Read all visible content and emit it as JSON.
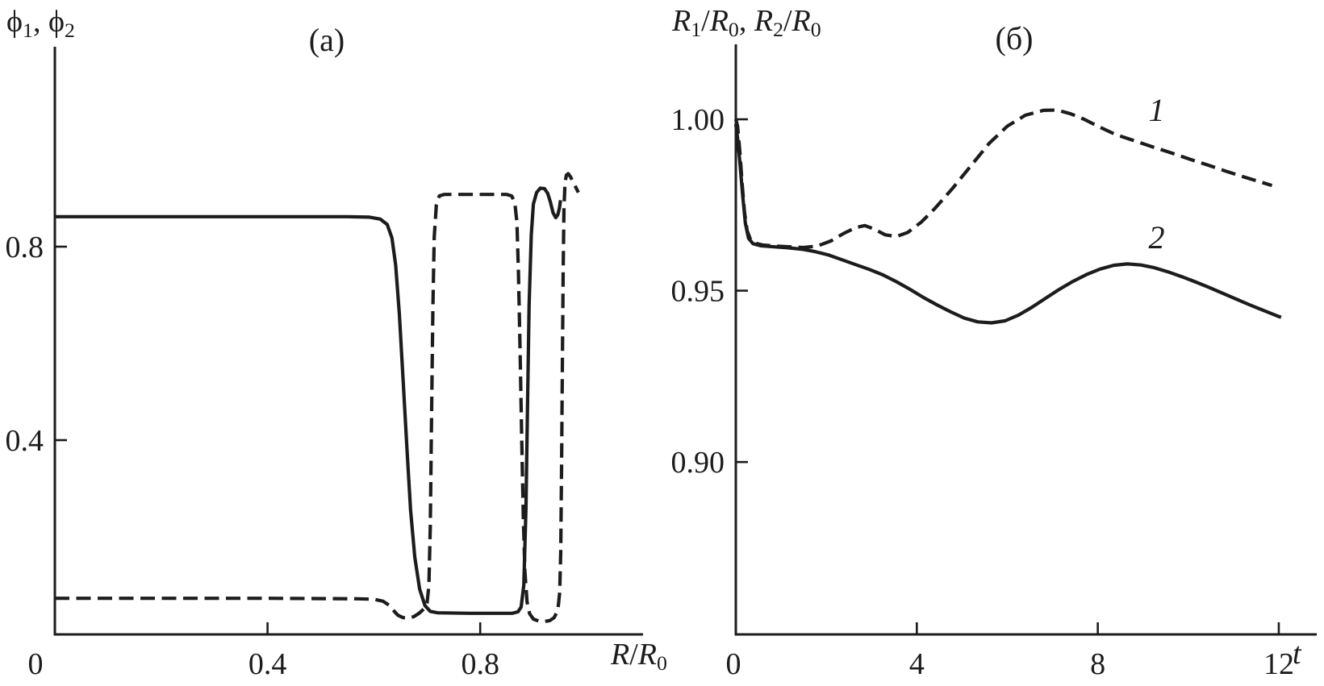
{
  "figure": {
    "background": "#ffffff",
    "ink": "#1c1c1c"
  },
  "chart_data": [
    {
      "type": "line",
      "panel": "a",
      "title": "(a)",
      "ylabel": "ϕ1, ϕ2",
      "ylabel_rich": [
        {
          "t": "ϕ"
        },
        {
          "t": "1",
          "sub": true
        },
        {
          "t": ", "
        },
        {
          "t": "ϕ"
        },
        {
          "t": "2",
          "sub": true
        }
      ],
      "xlabel": "R/R0",
      "xlabel_rich": [
        {
          "t": "R",
          "i": true
        },
        {
          "t": "/"
        },
        {
          "t": "R",
          "i": true
        },
        {
          "t": "0",
          "sub": true
        }
      ],
      "xlim": [
        0,
        1.105
      ],
      "ylim": [
        0,
        1.213
      ],
      "grid": false,
      "x_ticks": [
        {
          "v": 0,
          "label": "0",
          "dx": -24
        },
        {
          "v": 0.4,
          "label": "0.4",
          "dx": 0
        },
        {
          "v": 0.8,
          "label": "0.8",
          "dx": 0
        }
      ],
      "y_ticks": [
        {
          "v": 0.4,
          "label": "0.4"
        },
        {
          "v": 0.8,
          "label": "0.8"
        }
      ],
      "series": [
        {
          "name": "phi2-dashed-curve",
          "style": "dashed",
          "points": [
            [
              0,
              0.073
            ],
            [
              0.2,
              0.073
            ],
            [
              0.4,
              0.073
            ],
            [
              0.57,
              0.072
            ],
            [
              0.6,
              0.071
            ],
            [
              0.617,
              0.067
            ],
            [
              0.628,
              0.059
            ],
            [
              0.636,
              0.049
            ],
            [
              0.645,
              0.038
            ],
            [
              0.655,
              0.033
            ],
            [
              0.665,
              0.032
            ],
            [
              0.675,
              0.035
            ],
            [
              0.685,
              0.042
            ],
            [
              0.694,
              0.051
            ],
            [
              0.7,
              0.063
            ],
            [
              0.7035,
              0.1
            ],
            [
              0.706,
              0.22
            ],
            [
              0.7085,
              0.45
            ],
            [
              0.711,
              0.67
            ],
            [
              0.7135,
              0.82
            ],
            [
              0.7175,
              0.886
            ],
            [
              0.723,
              0.905
            ],
            [
              0.732,
              0.908
            ],
            [
              0.8,
              0.908
            ],
            [
              0.85,
              0.908
            ],
            [
              0.859,
              0.905
            ],
            [
              0.865,
              0.892
            ],
            [
              0.869,
              0.85
            ],
            [
              0.872,
              0.745
            ],
            [
              0.875,
              0.585
            ],
            [
              0.878,
              0.405
            ],
            [
              0.881,
              0.24
            ],
            [
              0.884,
              0.128
            ],
            [
              0.888,
              0.066
            ],
            [
              0.893,
              0.041
            ],
            [
              0.9,
              0.03
            ],
            [
              0.91,
              0.026
            ],
            [
              0.921,
              0.025
            ],
            [
              0.931,
              0.027
            ],
            [
              0.939,
              0.033
            ],
            [
              0.946,
              0.048
            ],
            [
              0.9495,
              0.085
            ],
            [
              0.9515,
              0.17
            ],
            [
              0.953,
              0.34
            ],
            [
              0.9545,
              0.55
            ],
            [
              0.956,
              0.75
            ],
            [
              0.9575,
              0.88
            ],
            [
              0.9595,
              0.932
            ],
            [
              0.962,
              0.948
            ],
            [
              0.9655,
              0.951
            ],
            [
              0.97,
              0.944
            ],
            [
              0.9755,
              0.932
            ],
            [
              0.981,
              0.92
            ],
            [
              0.9845,
              0.912
            ]
          ]
        },
        {
          "name": "phi1-solid-curve",
          "style": "solid",
          "points": [
            [
              0,
              0.862
            ],
            [
              0.2,
              0.862
            ],
            [
              0.4,
              0.862
            ],
            [
              0.55,
              0.862
            ],
            [
              0.592,
              0.861
            ],
            [
              0.612,
              0.857
            ],
            [
              0.625,
              0.846
            ],
            [
              0.634,
              0.818
            ],
            [
              0.641,
              0.762
            ],
            [
              0.648,
              0.66
            ],
            [
              0.655,
              0.525
            ],
            [
              0.662,
              0.385
            ],
            [
              0.669,
              0.255
            ],
            [
              0.677,
              0.158
            ],
            [
              0.686,
              0.092
            ],
            [
              0.696,
              0.058
            ],
            [
              0.706,
              0.046
            ],
            [
              0.72,
              0.043
            ],
            [
              0.78,
              0.042
            ],
            [
              0.86,
              0.042
            ],
            [
              0.871,
              0.045
            ],
            [
              0.877,
              0.055
            ],
            [
              0.882,
              0.1
            ],
            [
              0.886,
              0.26
            ],
            [
              0.889,
              0.48
            ],
            [
              0.892,
              0.68
            ],
            [
              0.896,
              0.825
            ],
            [
              0.9,
              0.888
            ],
            [
              0.906,
              0.912
            ],
            [
              0.913,
              0.921
            ],
            [
              0.921,
              0.92
            ],
            [
              0.927,
              0.91
            ],
            [
              0.932,
              0.892
            ],
            [
              0.937,
              0.87
            ],
            [
              0.942,
              0.86
            ],
            [
              0.946,
              0.866
            ],
            [
              0.949,
              0.88
            ],
            [
              0.951,
              0.896
            ]
          ]
        }
      ],
      "annotations": []
    },
    {
      "type": "line",
      "panel": "b",
      "title": "(б)",
      "ylabel": "R1/R0, R2/R0",
      "ylabel_rich": [
        {
          "t": "R",
          "i": true
        },
        {
          "t": "1",
          "sub": true
        },
        {
          "t": "/"
        },
        {
          "t": "R",
          "i": true
        },
        {
          "t": "0",
          "sub": true
        },
        {
          "t": ", "
        },
        {
          "t": "R",
          "i": true
        },
        {
          "t": "2",
          "sub": true
        },
        {
          "t": "/"
        },
        {
          "t": "R",
          "i": true
        },
        {
          "t": "0",
          "sub": true
        }
      ],
      "xlabel": "t",
      "xlabel_rich": [
        {
          "t": "t",
          "i": true
        }
      ],
      "xlim": [
        0,
        12.8
      ],
      "ylim": [
        0.8497,
        1.0219
      ],
      "grid": false,
      "x_ticks": [
        {
          "v": 0,
          "label": "0",
          "dx": -3
        },
        {
          "v": 4,
          "label": "4",
          "dx": 0
        },
        {
          "v": 8,
          "label": "8",
          "dx": 0
        },
        {
          "v": 12,
          "label": "12",
          "dx": 0
        }
      ],
      "y_ticks": [
        {
          "v": 0.9,
          "label": "0.90"
        },
        {
          "v": 0.95,
          "label": "0.95"
        },
        {
          "v": 1.0,
          "label": "1.00"
        }
      ],
      "series": [
        {
          "name": "R1-dashed-curve",
          "style": "dashed",
          "points": [
            [
              0,
              1.0
            ],
            [
              0.04,
              0.998
            ],
            [
              0.09,
              0.9905
            ],
            [
              0.14,
              0.981
            ],
            [
              0.19,
              0.973
            ],
            [
              0.25,
              0.9675
            ],
            [
              0.33,
              0.9648
            ],
            [
              0.45,
              0.9638
            ],
            [
              0.6,
              0.9633
            ],
            [
              0.9,
              0.963
            ],
            [
              1.2,
              0.9628
            ],
            [
              1.5,
              0.9626
            ],
            [
              1.8,
              0.963
            ],
            [
              2.1,
              0.9645
            ],
            [
              2.4,
              0.9668
            ],
            [
              2.65,
              0.9684
            ],
            [
              2.85,
              0.969
            ],
            [
              3.05,
              0.968
            ],
            [
              3.3,
              0.9663
            ],
            [
              3.55,
              0.9658
            ],
            [
              3.8,
              0.967
            ],
            [
              4.1,
              0.97
            ],
            [
              4.4,
              0.974
            ],
            [
              4.8,
              0.98
            ],
            [
              5.2,
              0.9865
            ],
            [
              5.6,
              0.993
            ],
            [
              6.0,
              0.998
            ],
            [
              6.4,
              1.0012
            ],
            [
              6.8,
              1.0026
            ],
            [
              7.1,
              1.0027
            ],
            [
              7.4,
              1.0016
            ],
            [
              7.7,
              1.0
            ],
            [
              8.0,
              0.998
            ],
            [
              8.4,
              0.9955
            ],
            [
              8.8,
              0.9938
            ],
            [
              9.2,
              0.992
            ],
            [
              9.6,
              0.9903
            ],
            [
              10.0,
              0.9885
            ],
            [
              10.4,
              0.9868
            ],
            [
              10.8,
              0.985
            ],
            [
              11.2,
              0.9833
            ],
            [
              11.6,
              0.9817
            ],
            [
              11.85,
              0.9807
            ]
          ]
        },
        {
          "name": "R2-solid-curve",
          "style": "solid",
          "points": [
            [
              0,
              0.9985
            ],
            [
              0.04,
              0.9945
            ],
            [
              0.09,
              0.9875
            ],
            [
              0.15,
              0.978
            ],
            [
              0.21,
              0.9697
            ],
            [
              0.28,
              0.9653
            ],
            [
              0.38,
              0.9637
            ],
            [
              0.55,
              0.9631
            ],
            [
              0.85,
              0.9628
            ],
            [
              1.15,
              0.9625
            ],
            [
              1.45,
              0.9621
            ],
            [
              1.75,
              0.9614
            ],
            [
              2.05,
              0.9604
            ],
            [
              2.35,
              0.959
            ],
            [
              2.65,
              0.9576
            ],
            [
              2.95,
              0.9562
            ],
            [
              3.25,
              0.9546
            ],
            [
              3.55,
              0.9526
            ],
            [
              3.85,
              0.9504
            ],
            [
              4.15,
              0.948
            ],
            [
              4.45,
              0.9458
            ],
            [
              4.75,
              0.9438
            ],
            [
              5.05,
              0.942
            ],
            [
              5.35,
              0.9409
            ],
            [
              5.65,
              0.9406
            ],
            [
              5.95,
              0.9412
            ],
            [
              6.25,
              0.9429
            ],
            [
              6.55,
              0.9452
            ],
            [
              6.85,
              0.9478
            ],
            [
              7.15,
              0.9504
            ],
            [
              7.45,
              0.9527
            ],
            [
              7.75,
              0.9547
            ],
            [
              8.05,
              0.9563
            ],
            [
              8.35,
              0.9574
            ],
            [
              8.65,
              0.9578
            ],
            [
              8.95,
              0.9575
            ],
            [
              9.25,
              0.9567
            ],
            [
              9.55,
              0.9555
            ],
            [
              9.85,
              0.9541
            ],
            [
              10.15,
              0.9526
            ],
            [
              10.45,
              0.951
            ],
            [
              10.75,
              0.9493
            ],
            [
              11.05,
              0.9476
            ],
            [
              11.35,
              0.9459
            ],
            [
              11.65,
              0.9443
            ],
            [
              11.95,
              0.9427
            ],
            [
              12.05,
              0.9422
            ]
          ]
        }
      ],
      "annotations": [
        {
          "text": "1",
          "x": 9.3,
          "y": 0.9995
        },
        {
          "text": "2",
          "x": 9.3,
          "y": 0.9624
        }
      ]
    }
  ]
}
